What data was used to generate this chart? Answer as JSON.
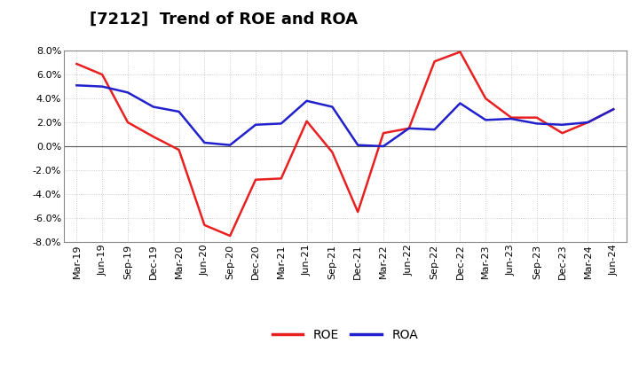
{
  "title": "[7212]  Trend of ROE and ROA",
  "x_labels": [
    "Mar-19",
    "Jun-19",
    "Sep-19",
    "Dec-19",
    "Mar-20",
    "Jun-20",
    "Sep-20",
    "Dec-20",
    "Mar-21",
    "Jun-21",
    "Sep-21",
    "Dec-21",
    "Mar-22",
    "Jun-22",
    "Sep-22",
    "Dec-22",
    "Mar-23",
    "Jun-23",
    "Sep-23",
    "Dec-23",
    "Mar-24",
    "Jun-24"
  ],
  "roe": [
    6.9,
    6.0,
    2.0,
    0.8,
    -0.3,
    -6.6,
    -7.5,
    -2.8,
    -2.7,
    2.1,
    -0.5,
    -5.5,
    1.1,
    1.5,
    7.1,
    7.9,
    4.0,
    2.4,
    2.4,
    1.1,
    2.0,
    3.1
  ],
  "roa": [
    5.1,
    5.0,
    4.5,
    3.3,
    2.9,
    0.3,
    0.1,
    1.8,
    1.9,
    3.8,
    3.3,
    0.1,
    0.0,
    1.5,
    1.4,
    3.6,
    2.2,
    2.3,
    1.9,
    1.8,
    2.0,
    3.1
  ],
  "roe_color": "#e82020",
  "roa_color": "#2020cc",
  "ylim": [
    -8.0,
    8.0
  ],
  "yticks": [
    -8.0,
    -6.0,
    -4.0,
    -2.0,
    0.0,
    2.0,
    4.0,
    6.0,
    8.0
  ],
  "background_color": "#ffffff",
  "plot_bg_color": "#ffffff",
  "grid_color": "#aaaaaa",
  "title_fontsize": 13,
  "legend_fontsize": 10,
  "tick_fontsize": 8,
  "line_width": 1.8
}
